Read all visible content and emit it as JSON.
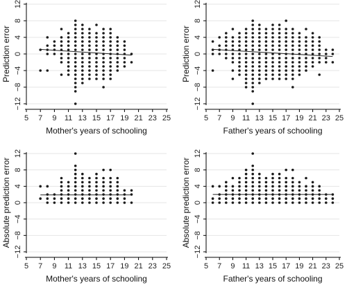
{
  "chart_data": [
    {
      "type": "scatter",
      "title": "",
      "xlabel": "Mother's years of schooling",
      "ylabel": "Prediction error",
      "xlim": [
        5,
        25
      ],
      "ylim": [
        -12,
        12
      ],
      "xticks": [
        5,
        7,
        9,
        11,
        13,
        15,
        17,
        19,
        21,
        23,
        25
      ],
      "yticks": [
        -12,
        -8,
        -4,
        0,
        4,
        8,
        12
      ],
      "grid": "horizontal",
      "points": {
        "7": [
          -4,
          1
        ],
        "8": [
          -4,
          0,
          1,
          2,
          4
        ],
        "9": [
          0,
          1,
          2,
          3
        ],
        "10": [
          -5,
          -2,
          -1,
          0,
          1,
          2,
          3,
          4,
          6
        ],
        "11": [
          -5,
          -4,
          -3,
          -2,
          -1,
          0,
          1,
          2,
          3,
          4,
          5
        ],
        "12": [
          -12,
          -9,
          -8,
          -7,
          -6,
          -5,
          -4,
          -3,
          -2,
          -1,
          0,
          1,
          2,
          3,
          4,
          5,
          6,
          7,
          8
        ],
        "13": [
          -7,
          -6,
          -5,
          -4,
          -3,
          -2,
          -1,
          0,
          1,
          2,
          3,
          4,
          5,
          6,
          7
        ],
        "14": [
          -6,
          -5,
          -4,
          -3,
          -2,
          -1,
          0,
          1,
          2,
          3,
          4,
          5,
          6
        ],
        "15": [
          -6,
          -5,
          -4,
          -3,
          -2,
          -1,
          0,
          1,
          2,
          3,
          4,
          5,
          7
        ],
        "16": [
          -8,
          -6,
          -5,
          -4,
          -3,
          -2,
          -1,
          0,
          1,
          2,
          3,
          4,
          5,
          6
        ],
        "17": [
          -6,
          -5,
          -4,
          -3,
          -2,
          -1,
          0,
          1,
          2,
          3,
          4,
          5,
          6
        ],
        "18": [
          -4,
          -3,
          -2,
          -1,
          0,
          1,
          2,
          3,
          4
        ],
        "19": [
          -3,
          -2,
          -1,
          0,
          1,
          2,
          3
        ],
        "20": [
          -2,
          0
        ]
      },
      "fit_line": {
        "x": [
          7,
          20
        ],
        "y": [
          1.1,
          -0.3
        ]
      }
    },
    {
      "type": "scatter",
      "title": "",
      "xlabel": "Father's years of schooling",
      "ylabel": "Prediction error",
      "xlim": [
        5,
        25
      ],
      "ylim": [
        -12,
        12
      ],
      "xticks": [
        5,
        7,
        9,
        11,
        13,
        15,
        17,
        19,
        21,
        23,
        25
      ],
      "yticks": [
        -12,
        -8,
        -4,
        0,
        4,
        8,
        12
      ],
      "grid": "horizontal",
      "points": {
        "6": [
          -4,
          0,
          1,
          3
        ],
        "7": [
          0,
          1,
          2,
          4
        ],
        "8": [
          -1,
          0,
          1,
          2,
          3,
          4,
          5
        ],
        "9": [
          -6,
          -4,
          -2,
          -1,
          0,
          1,
          2,
          3,
          4,
          6
        ],
        "10": [
          -5,
          -4,
          -3,
          -2,
          -1,
          0,
          1,
          2,
          3,
          4,
          5
        ],
        "11": [
          -8,
          -7,
          -6,
          -5,
          -4,
          -3,
          -2,
          -1,
          0,
          1,
          2,
          3,
          4,
          5,
          6
        ],
        "12": [
          -12,
          -9,
          -8,
          -7,
          -6,
          -5,
          -4,
          -3,
          -2,
          -1,
          0,
          1,
          2,
          3,
          4,
          5,
          6,
          7,
          8
        ],
        "13": [
          -7,
          -6,
          -5,
          -4,
          -3,
          -2,
          -1,
          0,
          1,
          2,
          3,
          4,
          5,
          6,
          7
        ],
        "14": [
          -6,
          -5,
          -4,
          -3,
          -2,
          -1,
          0,
          1,
          2,
          3,
          4,
          5,
          6
        ],
        "15": [
          -6,
          -5,
          -4,
          -3,
          -2,
          -1,
          0,
          1,
          2,
          3,
          4,
          5,
          6,
          7
        ],
        "16": [
          -6,
          -5,
          -4,
          -3,
          -2,
          -1,
          0,
          1,
          2,
          3,
          4,
          5,
          6,
          7
        ],
        "17": [
          -6,
          -5,
          -4,
          -3,
          -2,
          -1,
          0,
          1,
          2,
          3,
          4,
          5,
          6,
          8
        ],
        "18": [
          -8,
          -6,
          -5,
          -4,
          -3,
          -2,
          -1,
          0,
          1,
          2,
          3,
          4,
          5,
          6
        ],
        "19": [
          -5,
          -4,
          -3,
          -2,
          -1,
          0,
          1,
          2,
          3,
          4,
          5
        ],
        "20": [
          -4,
          -3,
          -2,
          -1,
          0,
          1,
          2,
          3,
          4,
          6
        ],
        "21": [
          -3,
          -2,
          -1,
          0,
          1,
          2,
          3,
          4,
          5
        ],
        "22": [
          -5,
          -2,
          -1,
          0,
          1,
          2,
          3,
          4
        ],
        "23": [
          -2,
          -1,
          0,
          1
        ],
        "24": [
          -2,
          0,
          1
        ]
      },
      "fit_line": {
        "x": [
          6,
          24
        ],
        "y": [
          1.1,
          -0.6
        ]
      }
    },
    {
      "type": "scatter",
      "title": "",
      "xlabel": "Mother's years of schooling",
      "ylabel": "Absolute prediction error",
      "xlim": [
        5,
        25
      ],
      "ylim": [
        -12,
        12
      ],
      "xticks": [
        5,
        7,
        9,
        11,
        13,
        15,
        17,
        19,
        21,
        23,
        25
      ],
      "yticks": [
        -12,
        -8,
        -4,
        0,
        4,
        8,
        12
      ],
      "grid": "horizontal",
      "points": {
        "7": [
          1,
          4
        ],
        "8": [
          0,
          1,
          2,
          4
        ],
        "9": [
          0,
          1,
          2
        ],
        "10": [
          0,
          1,
          2,
          3,
          4,
          5,
          6
        ],
        "11": [
          0,
          1,
          2,
          3,
          4,
          5
        ],
        "12": [
          0,
          1,
          2,
          3,
          4,
          5,
          6,
          7,
          8,
          9,
          12
        ],
        "13": [
          0,
          1,
          2,
          3,
          4,
          5,
          6,
          7
        ],
        "14": [
          0,
          1,
          2,
          3,
          4,
          5,
          6
        ],
        "15": [
          0,
          1,
          2,
          3,
          4,
          5,
          6,
          7
        ],
        "16": [
          0,
          1,
          2,
          3,
          4,
          5,
          6,
          8
        ],
        "17": [
          0,
          1,
          2,
          3,
          4,
          5,
          6,
          8
        ],
        "18": [
          0,
          1,
          2,
          3,
          4,
          5,
          6
        ],
        "19": [
          0,
          1,
          2,
          3
        ],
        "20": [
          0,
          2,
          3
        ]
      },
      "fit_line": {
        "x": [
          7,
          20
        ],
        "y": [
          1.9,
          1.9
        ]
      }
    },
    {
      "type": "scatter",
      "title": "",
      "xlabel": "Father's years of schooling",
      "ylabel": "Absolute prediction error",
      "xlim": [
        5,
        25
      ],
      "ylim": [
        -12,
        12
      ],
      "xticks": [
        5,
        7,
        9,
        11,
        13,
        15,
        17,
        19,
        21,
        23,
        25
      ],
      "yticks": [
        -12,
        -8,
        -4,
        0,
        4,
        8,
        12
      ],
      "grid": "horizontal",
      "points": {
        "6": [
          0,
          1,
          4
        ],
        "7": [
          0,
          1,
          2,
          4
        ],
        "8": [
          0,
          1,
          2,
          3,
          4,
          5
        ],
        "9": [
          0,
          1,
          2,
          3,
          4,
          6
        ],
        "10": [
          0,
          1,
          2,
          3,
          4,
          5,
          6
        ],
        "11": [
          0,
          1,
          2,
          3,
          4,
          5,
          6,
          7,
          8
        ],
        "12": [
          0,
          1,
          2,
          3,
          4,
          5,
          6,
          7,
          8,
          9,
          12
        ],
        "13": [
          0,
          1,
          2,
          3,
          4,
          5,
          6,
          7
        ],
        "14": [
          0,
          1,
          2,
          3,
          4,
          5,
          6
        ],
        "15": [
          0,
          1,
          2,
          3,
          4,
          5,
          6,
          7
        ],
        "16": [
          0,
          1,
          2,
          3,
          4,
          5,
          6,
          7
        ],
        "17": [
          0,
          1,
          2,
          3,
          4,
          5,
          6,
          8
        ],
        "18": [
          0,
          1,
          2,
          3,
          4,
          5,
          6,
          8
        ],
        "19": [
          0,
          1,
          2,
          3,
          4,
          5
        ],
        "20": [
          0,
          1,
          2,
          3,
          4,
          6
        ],
        "21": [
          0,
          1,
          2,
          3,
          4,
          5
        ],
        "22": [
          0,
          1,
          2,
          3,
          4
        ],
        "23": [
          0,
          1,
          2
        ],
        "24": [
          0,
          1,
          2
        ]
      },
      "fit_line": {
        "x": [
          6,
          24
        ],
        "y": [
          2.0,
          2.0
        ]
      }
    }
  ]
}
